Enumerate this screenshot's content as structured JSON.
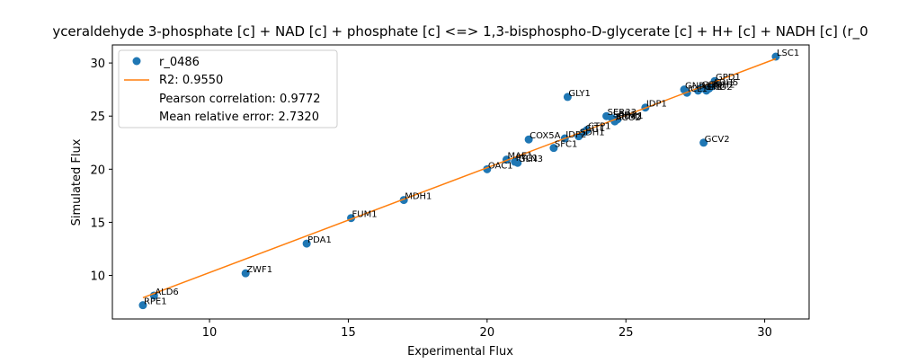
{
  "chart_data": {
    "type": "scatter",
    "title": "yceraldehyde 3-phosphate [c] + NAD [c] + phosphate [c] <=> 1,3-bisphospho-D-glycerate [c] + H+ [c] + NADH [c] (r_0",
    "xlabel": "Experimental Flux",
    "ylabel": "Simulated Flux",
    "xlim": [
      6.5,
      31.6
    ],
    "ylim": [
      5.9,
      31.7
    ],
    "xticks": [
      10,
      15,
      20,
      25,
      30
    ],
    "yticks": [
      10,
      15,
      20,
      25,
      30
    ],
    "grid": false,
    "legend_position": "upper-left",
    "colors": {
      "points": "#1f77b4",
      "fit_line": "#ff7f0e"
    },
    "series": [
      {
        "name": "r_0486",
        "kind": "points",
        "points": [
          {
            "label": "RPE1",
            "x": 7.6,
            "y": 7.2
          },
          {
            "label": "ALD6",
            "x": 8.0,
            "y": 8.1
          },
          {
            "label": "ZWF1",
            "x": 11.3,
            "y": 10.2
          },
          {
            "label": "PDA1",
            "x": 13.5,
            "y": 13.0
          },
          {
            "label": "FUM1",
            "x": 15.1,
            "y": 15.4
          },
          {
            "label": "MDH1",
            "x": 17.0,
            "y": 17.1
          },
          {
            "label": "OAC1",
            "x": 20.0,
            "y": 20.0
          },
          {
            "label": "MAE1",
            "x": 20.7,
            "y": 20.9
          },
          {
            "label": "PYC1",
            "x": 21.0,
            "y": 20.7
          },
          {
            "label": "GLN3",
            "x": 21.1,
            "y": 20.6
          },
          {
            "label": "SFC1",
            "x": 22.4,
            "y": 22.0
          },
          {
            "label": "COX5A",
            "x": 21.5,
            "y": 22.8
          },
          {
            "label": "IDP2",
            "x": 22.8,
            "y": 22.9
          },
          {
            "label": "SDH1",
            "x": 23.3,
            "y": 23.1
          },
          {
            "label": "CIT1",
            "x": 23.5,
            "y": 23.5
          },
          {
            "label": "CTP1",
            "x": 23.6,
            "y": 23.7
          },
          {
            "label": "GLY1",
            "x": 22.9,
            "y": 26.8
          },
          {
            "label": "SER33",
            "x": 24.3,
            "y": 25.0
          },
          {
            "label": "SER1",
            "x": 24.5,
            "y": 24.8
          },
          {
            "label": "SHM2",
            "x": 24.6,
            "y": 24.6
          },
          {
            "label": "PDH1",
            "x": 24.7,
            "y": 24.7
          },
          {
            "label": "ACO2",
            "x": 24.6,
            "y": 24.5
          },
          {
            "label": "IDP1",
            "x": 25.7,
            "y": 25.8
          },
          {
            "label": "GCV2",
            "x": 27.8,
            "y": 22.5
          },
          {
            "label": "GND1",
            "x": 27.1,
            "y": 27.5
          },
          {
            "label": "ICL1",
            "x": 27.2,
            "y": 27.2
          },
          {
            "label": "PGK1",
            "x": 27.6,
            "y": 27.4
          },
          {
            "label": "GLN1",
            "x": 27.7,
            "y": 27.6
          },
          {
            "label": "ENO2",
            "x": 27.9,
            "y": 27.4
          },
          {
            "label": "TDH2",
            "x": 28.0,
            "y": 27.6
          },
          {
            "label": "ADH5",
            "x": 28.1,
            "y": 27.8
          },
          {
            "label": "GPD1",
            "x": 28.2,
            "y": 28.3
          },
          {
            "label": "LSC1",
            "x": 30.4,
            "y": 30.6
          }
        ]
      },
      {
        "name": "R2: 0.9550",
        "kind": "line",
        "points": [
          {
            "x": 7.6,
            "y": 7.9
          },
          {
            "x": 30.4,
            "y": 30.4
          }
        ]
      }
    ],
    "legend_extra": [
      "Pearson correlation: 0.9772",
      "Mean relative error: 2.7320"
    ]
  }
}
